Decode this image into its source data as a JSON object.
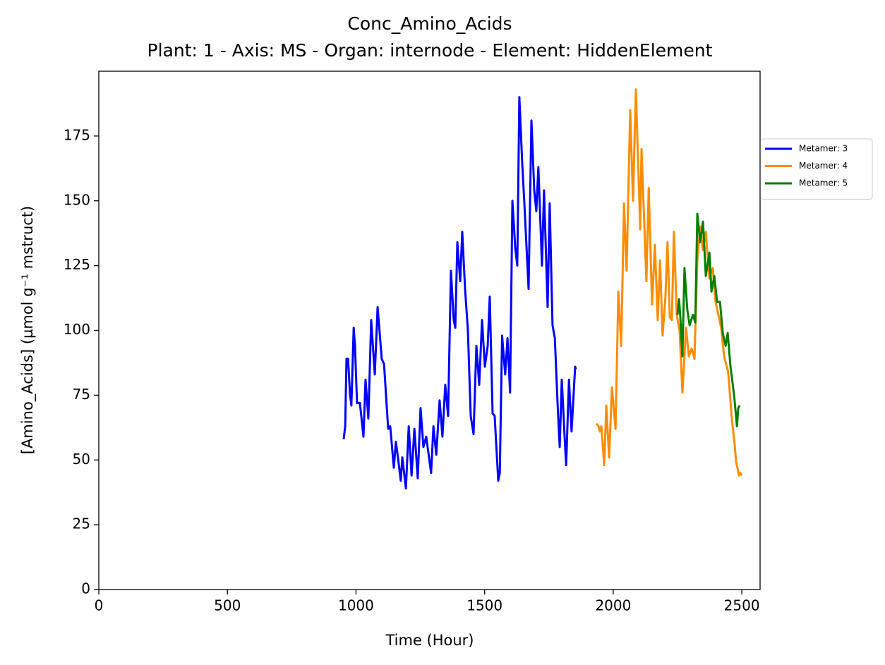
{
  "chart_data": {
    "type": "line",
    "title": "Conc_Amino_Acids",
    "subtitle": "Plant: 1 - Axis: MS - Organ: internode - Element: HiddenElement",
    "xlabel": "Time (Hour)",
    "ylabel": "[Amino_Acids] (µmol g⁻¹ mstruct)",
    "xlim": [
      0,
      2571
    ],
    "ylim": [
      0,
      200
    ],
    "xticks": [
      0,
      500,
      1000,
      1500,
      2000,
      2500
    ],
    "yticks": [
      0,
      25,
      50,
      75,
      100,
      125,
      150,
      175
    ],
    "grid": false,
    "legend": "outside right",
    "series": [
      {
        "name": "Metamer: 3",
        "color": "#0000ff",
        "x": [
          952,
          958,
          963,
          969,
          977,
          982,
          991,
          996,
          1004,
          1015,
          1029,
          1037,
          1048,
          1059,
          1073,
          1084,
          1100,
          1109,
          1125,
          1133,
          1147,
          1155,
          1163,
          1174,
          1180,
          1194,
          1205,
          1216,
          1227,
          1240,
          1251,
          1262,
          1273,
          1292,
          1301,
          1312,
          1325,
          1336,
          1347,
          1358,
          1369,
          1380,
          1386,
          1394,
          1405,
          1413,
          1424,
          1435,
          1446,
          1457,
          1468,
          1479,
          1490,
          1501,
          1512,
          1520,
          1531,
          1539,
          1553,
          1559,
          1568,
          1580,
          1589,
          1599,
          1608,
          1619,
          1627,
          1635,
          1646,
          1654,
          1671,
          1682,
          1693,
          1701,
          1709,
          1723,
          1731,
          1745,
          1753,
          1764,
          1773,
          1784,
          1792,
          1800,
          1811,
          1817,
          1828,
          1838,
          1852,
          1855
        ],
        "values": [
          58,
          63,
          89,
          89,
          75,
          71,
          101,
          94,
          72,
          72,
          59,
          81,
          66,
          104,
          83,
          109,
          89,
          87,
          62,
          63,
          47,
          57,
          51,
          42,
          51,
          39,
          63,
          44,
          62,
          43,
          70,
          55,
          59,
          45,
          63,
          52,
          73,
          59,
          79,
          67,
          123,
          104,
          101,
          134,
          119,
          138,
          116,
          100,
          67,
          60,
          94,
          79,
          104,
          86,
          94,
          113,
          68,
          67,
          42,
          45,
          98,
          83,
          97,
          76,
          150,
          132,
          125,
          190,
          165,
          150,
          116,
          181,
          154,
          146,
          163,
          125,
          154,
          109,
          149,
          102,
          97,
          71,
          55,
          81,
          59,
          48,
          81,
          61,
          86,
          85
        ]
      },
      {
        "name": "Metamer: 4",
        "color": "#ff8c00",
        "x": [
          1934,
          1943,
          1948,
          1954,
          1965,
          1973,
          1984,
          1995,
          2009,
          2020,
          2031,
          2042,
          2052,
          2066,
          2077,
          2088,
          2105,
          2110,
          2129,
          2138,
          2151,
          2162,
          2173,
          2182,
          2192,
          2203,
          2211,
          2220,
          2228,
          2236,
          2247,
          2258,
          2269,
          2283,
          2294,
          2305,
          2316,
          2327,
          2338,
          2349,
          2360,
          2374,
          2387,
          2398,
          2409,
          2420,
          2431,
          2447,
          2461,
          2472,
          2478,
          2483,
          2489,
          2494,
          2500
        ],
        "values": [
          64,
          63,
          61,
          63,
          48,
          71,
          51,
          78,
          62,
          115,
          94,
          149,
          123,
          185,
          150,
          193,
          139,
          170,
          119,
          155,
          110,
          133,
          104,
          127,
          98,
          113,
          134,
          105,
          104,
          138,
          106,
          100,
          76,
          101,
          90,
          93,
          89,
          127,
          140,
          131,
          138,
          120,
          124,
          111,
          106,
          101,
          90,
          84,
          66,
          56,
          49,
          47,
          44,
          45,
          44
        ]
      },
      {
        "name": "Metamer: 5",
        "color": "#008000",
        "x": [
          2250,
          2256,
          2261,
          2269,
          2277,
          2288,
          2297,
          2310,
          2319,
          2327,
          2338,
          2349,
          2360,
          2374,
          2382,
          2393,
          2404,
          2415,
          2426,
          2437,
          2445,
          2456,
          2470,
          2481,
          2486,
          2492
        ],
        "values": [
          106,
          112,
          105,
          90,
          124,
          108,
          102,
          106,
          103,
          145,
          134,
          142,
          121,
          130,
          115,
          121,
          111,
          111,
          99,
          94,
          99,
          86,
          75,
          63,
          70,
          71
        ]
      }
    ]
  }
}
